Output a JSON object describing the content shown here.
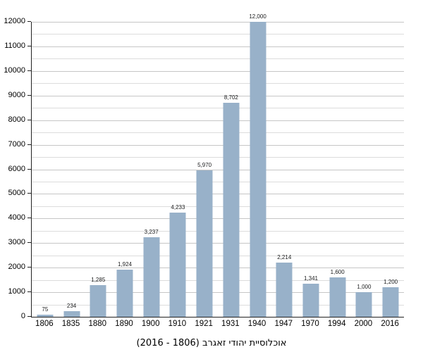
{
  "chart_data": {
    "type": "bar",
    "title": "אוכלוסיית יהודי זאגרב (1806 - 2016)",
    "categories": [
      "1806",
      "1835",
      "1880",
      "1890",
      "1900",
      "1910",
      "1921",
      "1931",
      "1940",
      "1947",
      "1970",
      "1994",
      "2000",
      "2016"
    ],
    "values": [
      75,
      234,
      1285,
      1924,
      3237,
      4233,
      5970,
      8702,
      12000,
      2214,
      1341,
      1600,
      1000,
      1200
    ],
    "value_labels": [
      "75",
      "234",
      "1,285",
      "1,924",
      "3,237",
      "4,233",
      "5,970",
      "8,702",
      "12,000",
      "2,214",
      "1,341",
      "1,600",
      "1,000",
      "1,200"
    ],
    "xlabel": "",
    "ylabel": "",
    "ylim": [
      0,
      12000
    ],
    "ytick_step": 1000,
    "ytick_labels": [
      "0",
      "1000",
      "2000",
      "3000",
      "4000",
      "5000",
      "6000",
      "7000",
      "8000",
      "9000",
      "10000",
      "11000",
      "12000"
    ],
    "minor_grid_step": 500,
    "grid": true,
    "legend_position": "none",
    "colors": {
      "bar": "#98B1C9",
      "major_grid": "#c6c6c6",
      "minor_grid": "#dcdcdc",
      "axis": "#222222",
      "label_text": "#202122"
    }
  }
}
